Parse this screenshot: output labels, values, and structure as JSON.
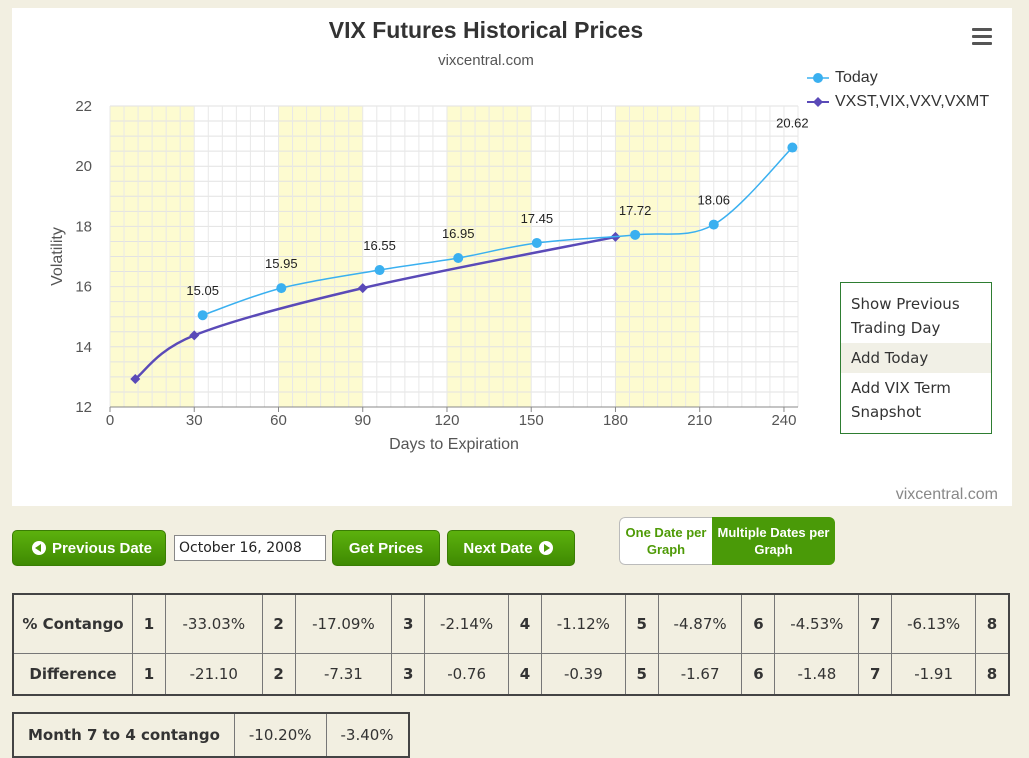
{
  "chart_data": {
    "type": "line",
    "title": "VIX Futures Historical Prices",
    "subtitle": "vixcentral.com",
    "credit": "vixcentral.com",
    "xlabel": "Days to Expiration",
    "ylabel": "Volatility",
    "xlim": [
      0,
      245
    ],
    "ylim": [
      12,
      22
    ],
    "x_ticks": [
      0,
      30,
      60,
      90,
      120,
      150,
      180,
      210,
      240
    ],
    "y_ticks": [
      12,
      14,
      16,
      18,
      20,
      22
    ],
    "shaded_bands": [
      [
        0,
        30
      ],
      [
        60,
        90
      ],
      [
        120,
        150
      ],
      [
        180,
        210
      ]
    ],
    "grid": true,
    "legend_position": "top-right",
    "series": [
      {
        "name": "Today",
        "color": "#3ab0f0",
        "marker": "circle",
        "x": [
          33,
          61,
          96,
          124,
          152,
          187,
          215,
          243
        ],
        "y": [
          15.05,
          15.95,
          16.55,
          16.95,
          17.45,
          17.72,
          18.06,
          20.62
        ],
        "labels": [
          "15.05",
          "15.95",
          "16.55",
          "16.95",
          "17.45",
          "17.72",
          "18.06",
          "20.62"
        ]
      },
      {
        "name": "VXST,VIX,VXV,VXMT",
        "color": "#5a4ab8",
        "marker": "diamond",
        "x": [
          9,
          30,
          90,
          180
        ],
        "y": [
          12.93,
          14.38,
          15.95,
          17.65
        ]
      }
    ]
  },
  "menu": {
    "items": [
      "Show Previous Trading Day",
      "Add Today",
      "Add VIX Term Snapshot"
    ]
  },
  "controls": {
    "previous_date": "Previous Date",
    "date_value": "October 16, 2008",
    "get_prices": "Get Prices",
    "next_date": "Next Date",
    "one_date": "One Date per Graph",
    "multiple_dates": "Multiple Dates per Graph"
  },
  "contango_table": {
    "row1_label": "% Contango",
    "row2_label": "Difference",
    "months": [
      "1",
      "2",
      "3",
      "4",
      "5",
      "6",
      "7",
      "8"
    ],
    "contango": [
      "-33.03%",
      "-17.09%",
      "-2.14%",
      "-1.12%",
      "-4.87%",
      "-4.53%",
      "-6.13%"
    ],
    "difference": [
      "-21.10",
      "-7.31",
      "-0.76",
      "-0.39",
      "-1.67",
      "-1.48",
      "-1.91"
    ]
  },
  "month_table": {
    "label": "Month 7 to 4 contango",
    "v1": "-10.20%",
    "v2": "-3.40%"
  }
}
